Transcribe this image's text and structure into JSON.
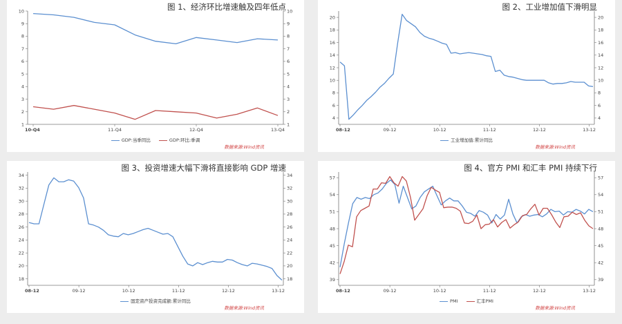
{
  "chart_data": [
    {
      "type": "line",
      "title": "图 1、经济环比增速触及四年低点",
      "x": [
        "10-Q4",
        "11-Q1",
        "11-Q2",
        "11-Q3",
        "11-Q4",
        "12-Q1",
        "12-Q2",
        "12-Q3",
        "12-Q4",
        "13-Q1",
        "13-Q2",
        "13-Q3",
        "13-Q4"
      ],
      "xtick_labels": [
        "10-Q4",
        "11-Q4",
        "12-Q4",
        "13-Q4"
      ],
      "xtick_index": [
        0,
        4,
        8,
        12
      ],
      "ylim": [
        1,
        10
      ],
      "yticks": [
        1,
        2,
        3,
        4,
        5,
        6,
        7,
        8,
        9,
        10
      ],
      "dual_axis": true,
      "grid": false,
      "series": [
        {
          "name": "GDP:当季同比",
          "color": "#5b8fd0",
          "values": [
            9.8,
            9.7,
            9.5,
            9.1,
            8.9,
            8.1,
            7.6,
            7.4,
            7.9,
            7.7,
            7.5,
            7.8,
            7.7
          ]
        },
        {
          "name": "GDP:环比:季调",
          "color": "#c0504d",
          "values": [
            2.4,
            2.2,
            2.5,
            2.2,
            1.9,
            1.4,
            2.1,
            2.0,
            1.9,
            1.5,
            1.8,
            2.3,
            1.7
          ]
        }
      ],
      "source": "数据来源:Wind资讯"
    },
    {
      "type": "line",
      "title": "图 2、工业增加值下滑明显",
      "xtick_labels": [
        "08-12",
        "09-12",
        "10-12",
        "11-12",
        "12-12",
        "13-12"
      ],
      "x_start": "2008-12",
      "x_end": "2013-12",
      "ylim": [
        3,
        21
      ],
      "yticks": [
        4,
        6,
        8,
        10,
        12,
        14,
        16,
        18,
        20
      ],
      "dual_axis": true,
      "grid": false,
      "series": [
        {
          "name": "工业增加值:累计同比",
          "color": "#5b8fd0",
          "values": [
            12.9,
            12.3,
            3.8,
            4.5,
            5.3,
            6.0,
            6.8,
            7.4,
            8.1,
            8.9,
            9.5,
            10.3,
            11.0,
            16.0,
            20.5,
            19.5,
            19.0,
            18.5,
            17.6,
            17.0,
            16.7,
            16.5,
            16.2,
            15.9,
            15.7,
            14.3,
            14.4,
            14.2,
            14.3,
            14.4,
            14.3,
            14.2,
            14.1,
            13.9,
            13.8,
            11.4,
            11.6,
            10.8,
            10.6,
            10.5,
            10.3,
            10.1,
            10.0,
            10.0,
            10.0,
            10.0,
            10.0,
            9.6,
            9.4,
            9.5,
            9.5,
            9.6,
            9.8,
            9.7,
            9.7,
            9.7,
            9.1,
            9.0
          ]
        }
      ],
      "source": "数据来源:Wind资讯"
    },
    {
      "type": "line",
      "title": "图 3、投资增速大幅下滑将直接影响 GDP 增速",
      "xtick_labels": [
        "08-12",
        "09-12",
        "10-12",
        "11-12",
        "12-12",
        "13-12"
      ],
      "x_start": "2008-12",
      "x_end": "2013-12",
      "ylim": [
        17,
        34.5
      ],
      "yticks": [
        18,
        20,
        22,
        24,
        26,
        28,
        30,
        32,
        34
      ],
      "dual_axis": true,
      "grid": false,
      "series": [
        {
          "name": "固定资产投资完成额:累计同比",
          "color": "#5b8fd0",
          "values": [
            26.7,
            26.5,
            26.5,
            29.5,
            32.5,
            33.6,
            33.0,
            33.0,
            33.3,
            33.1,
            32.1,
            30.5,
            26.5,
            26.3,
            26.0,
            25.5,
            24.8,
            24.6,
            24.5,
            25.0,
            24.8,
            25.0,
            25.3,
            25.6,
            25.8,
            25.5,
            25.2,
            24.9,
            25.0,
            24.5,
            23.0,
            21.5,
            20.3,
            20.0,
            20.5,
            20.2,
            20.5,
            20.7,
            20.6,
            20.6,
            21.0,
            20.9,
            20.5,
            20.2,
            20.0,
            20.4,
            20.3,
            20.1,
            19.9,
            19.6,
            18.5,
            17.8
          ]
        }
      ],
      "source": "数据来源:Wind资讯"
    },
    {
      "type": "line",
      "title": "图 4、官方 PMI 和汇丰 PMI 持续下行",
      "xtick_labels": [
        "08-12",
        "09-12",
        "10-12",
        "11-12",
        "12-12",
        "13-12"
      ],
      "x_start": "2008-12",
      "x_end": "2013-12",
      "ylim": [
        38,
        58
      ],
      "yticks": [
        39,
        42,
        45,
        48,
        51,
        54,
        57
      ],
      "dual_axis": true,
      "grid": false,
      "series": [
        {
          "name": "PMI",
          "color": "#5b8fd0",
          "values": [
            41.2,
            45.3,
            49.0,
            52.4,
            53.5,
            53.2,
            53.5,
            53.3,
            54.0,
            54.3,
            55.0,
            56.0,
            56.6,
            55.8,
            52.5,
            55.5,
            53.5,
            51.5,
            52.0,
            53.5,
            54.5,
            55.0,
            55.5,
            53.8,
            52.2,
            52.9,
            53.4,
            52.9,
            52.9,
            52.0,
            50.9,
            50.7,
            50.2,
            51.2,
            50.9,
            50.4,
            49.0,
            50.5,
            49.7,
            50.4,
            53.2,
            50.6,
            49.0,
            50.1,
            50.5,
            50.2,
            50.4,
            50.5,
            50.1,
            50.6,
            51.4,
            51.0,
            51.1,
            50.4,
            51.0,
            50.9,
            51.4,
            51.1,
            50.6,
            51.4,
            51.0
          ]
        },
        {
          "name": "汇丰PMI",
          "color": "#c0504d",
          "values": [
            40.0,
            42.2,
            45.1,
            44.8,
            50.1,
            51.2,
            51.6,
            52.0,
            55.0,
            55.0,
            56.1,
            56.0,
            57.2,
            56.1,
            55.5,
            57.2,
            56.4,
            53.5,
            49.5,
            50.5,
            51.5,
            53.8,
            55.3,
            54.8,
            54.4,
            51.7,
            51.8,
            51.8,
            51.6,
            51.1,
            49.0,
            48.9,
            49.3,
            50.4,
            48.0,
            48.7,
            48.8,
            49.6,
            48.3,
            49.1,
            49.6,
            48.1,
            48.7,
            49.2,
            50.3,
            50.5,
            51.5,
            52.3,
            50.4,
            51.6,
            51.6,
            50.5,
            49.2,
            48.2,
            50.1,
            50.2,
            50.9,
            50.5,
            50.8,
            49.5,
            48.5,
            48.0
          ]
        }
      ],
      "source": "数据来源:Wind资讯"
    }
  ]
}
